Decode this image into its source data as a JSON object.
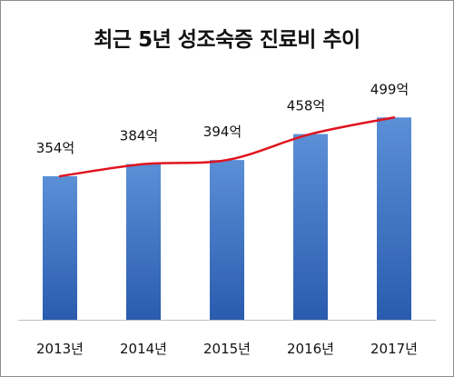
{
  "chart_data": {
    "type": "bar",
    "title": "최근 5년 성조숙증 진료비 추이",
    "categories": [
      "2013년",
      "2014년",
      "2015년",
      "2016년",
      "2017년"
    ],
    "values": [
      354,
      384,
      394,
      458,
      499
    ],
    "value_labels": [
      "354억",
      "384억",
      "394억",
      "458억",
      "499억"
    ],
    "unit": "억",
    "ylim": [
      0,
      600
    ],
    "grid": false,
    "legend": "none",
    "trend_line": true,
    "colors": {
      "bar_top": "#5b8fd6",
      "bar_bottom": "#2a5cae",
      "trend": "#e0141e",
      "axis": "#bfbfbf"
    }
  }
}
